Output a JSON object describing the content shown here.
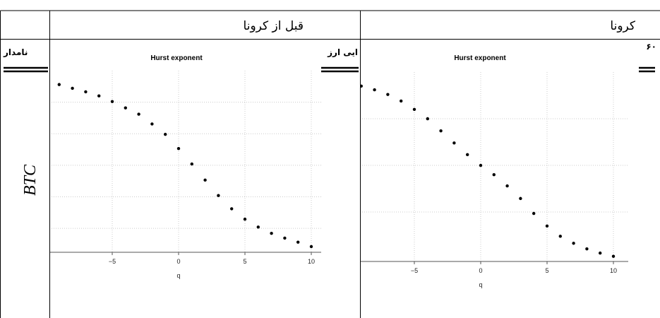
{
  "table": {
    "header": [
      "قبل از کرونا",
      "کرونا"
    ],
    "row_cut": [
      "نامدار",
      "ایی ارز",
      "۶۰"
    ],
    "row_label": "BTC"
  },
  "chart_data": [
    {
      "type": "scatter",
      "title": "Hurst exponent",
      "x_label": "q",
      "x": [
        -9,
        -8,
        -7,
        -6,
        -5,
        -4,
        -3,
        -2,
        -1,
        0,
        1,
        2,
        3,
        4,
        5,
        6,
        7,
        8,
        9,
        10
      ],
      "values": [
        5.56,
        5.44,
        5.33,
        5.2,
        5.02,
        4.82,
        4.62,
        4.31,
        3.98,
        3.53,
        3.04,
        2.53,
        2.04,
        1.62,
        1.29,
        1.04,
        0.84,
        0.69,
        0.56,
        0.42
      ],
      "color": "#000000",
      "xlim": [
        -10,
        10.5
      ],
      "ylim": [
        0.24,
        6.0
      ],
      "xticks": [
        {
          "value": -5,
          "label": "−5"
        },
        0,
        5,
        10
      ],
      "ygrid": [
        1,
        2,
        3,
        4,
        5
      ],
      "grid": true
    },
    {
      "type": "scatter",
      "title": "Hurst exponent",
      "x_label": "q",
      "x": [
        -9,
        -8,
        -7,
        -6,
        -5,
        -4,
        -3,
        -2,
        -1,
        0,
        1,
        2,
        3,
        4,
        5,
        6,
        7,
        8,
        9,
        10
      ],
      "values": [
        3.7,
        3.62,
        3.52,
        3.38,
        3.2,
        3.0,
        2.74,
        2.48,
        2.23,
        2.0,
        1.8,
        1.56,
        1.29,
        0.97,
        0.7,
        0.48,
        0.33,
        0.21,
        0.12,
        0.05
      ],
      "color": "#000000",
      "xlim": [
        -9.1,
        11
      ],
      "ylim": [
        -0.06,
        4.0
      ],
      "xticks": [
        {
          "value": -5,
          "label": "−5"
        },
        0,
        5,
        10
      ],
      "ygrid": [
        1,
        2,
        3
      ],
      "grid": true
    }
  ]
}
